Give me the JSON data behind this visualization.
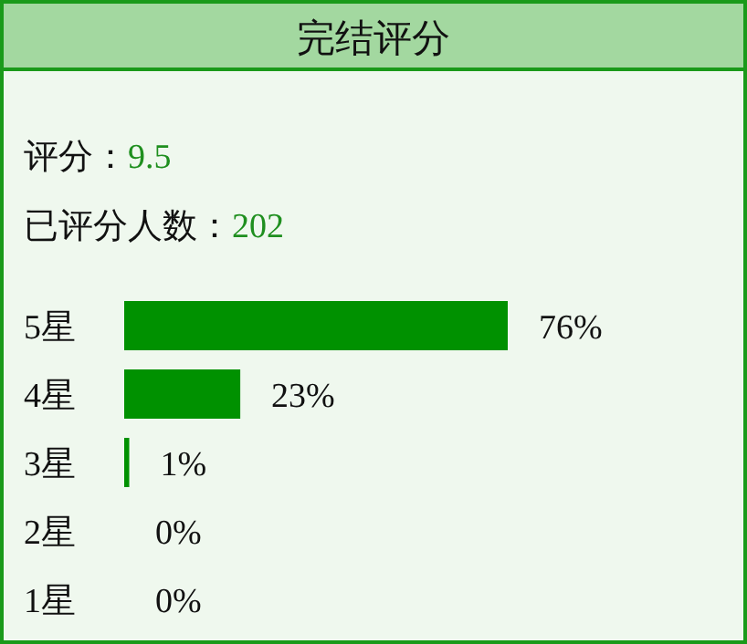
{
  "chart_data": {
    "type": "bar",
    "orientation": "horizontal",
    "title": "完结评分",
    "annotations": [
      "评分：9.5",
      "已评分人数：202"
    ],
    "categories": [
      "5星",
      "4星",
      "3星",
      "2星",
      "1星"
    ],
    "values": [
      76,
      23,
      1,
      0,
      0
    ],
    "value_labels": [
      "76%",
      "23%",
      "1%",
      "0%",
      "0%"
    ],
    "color": "#009100"
  }
}
